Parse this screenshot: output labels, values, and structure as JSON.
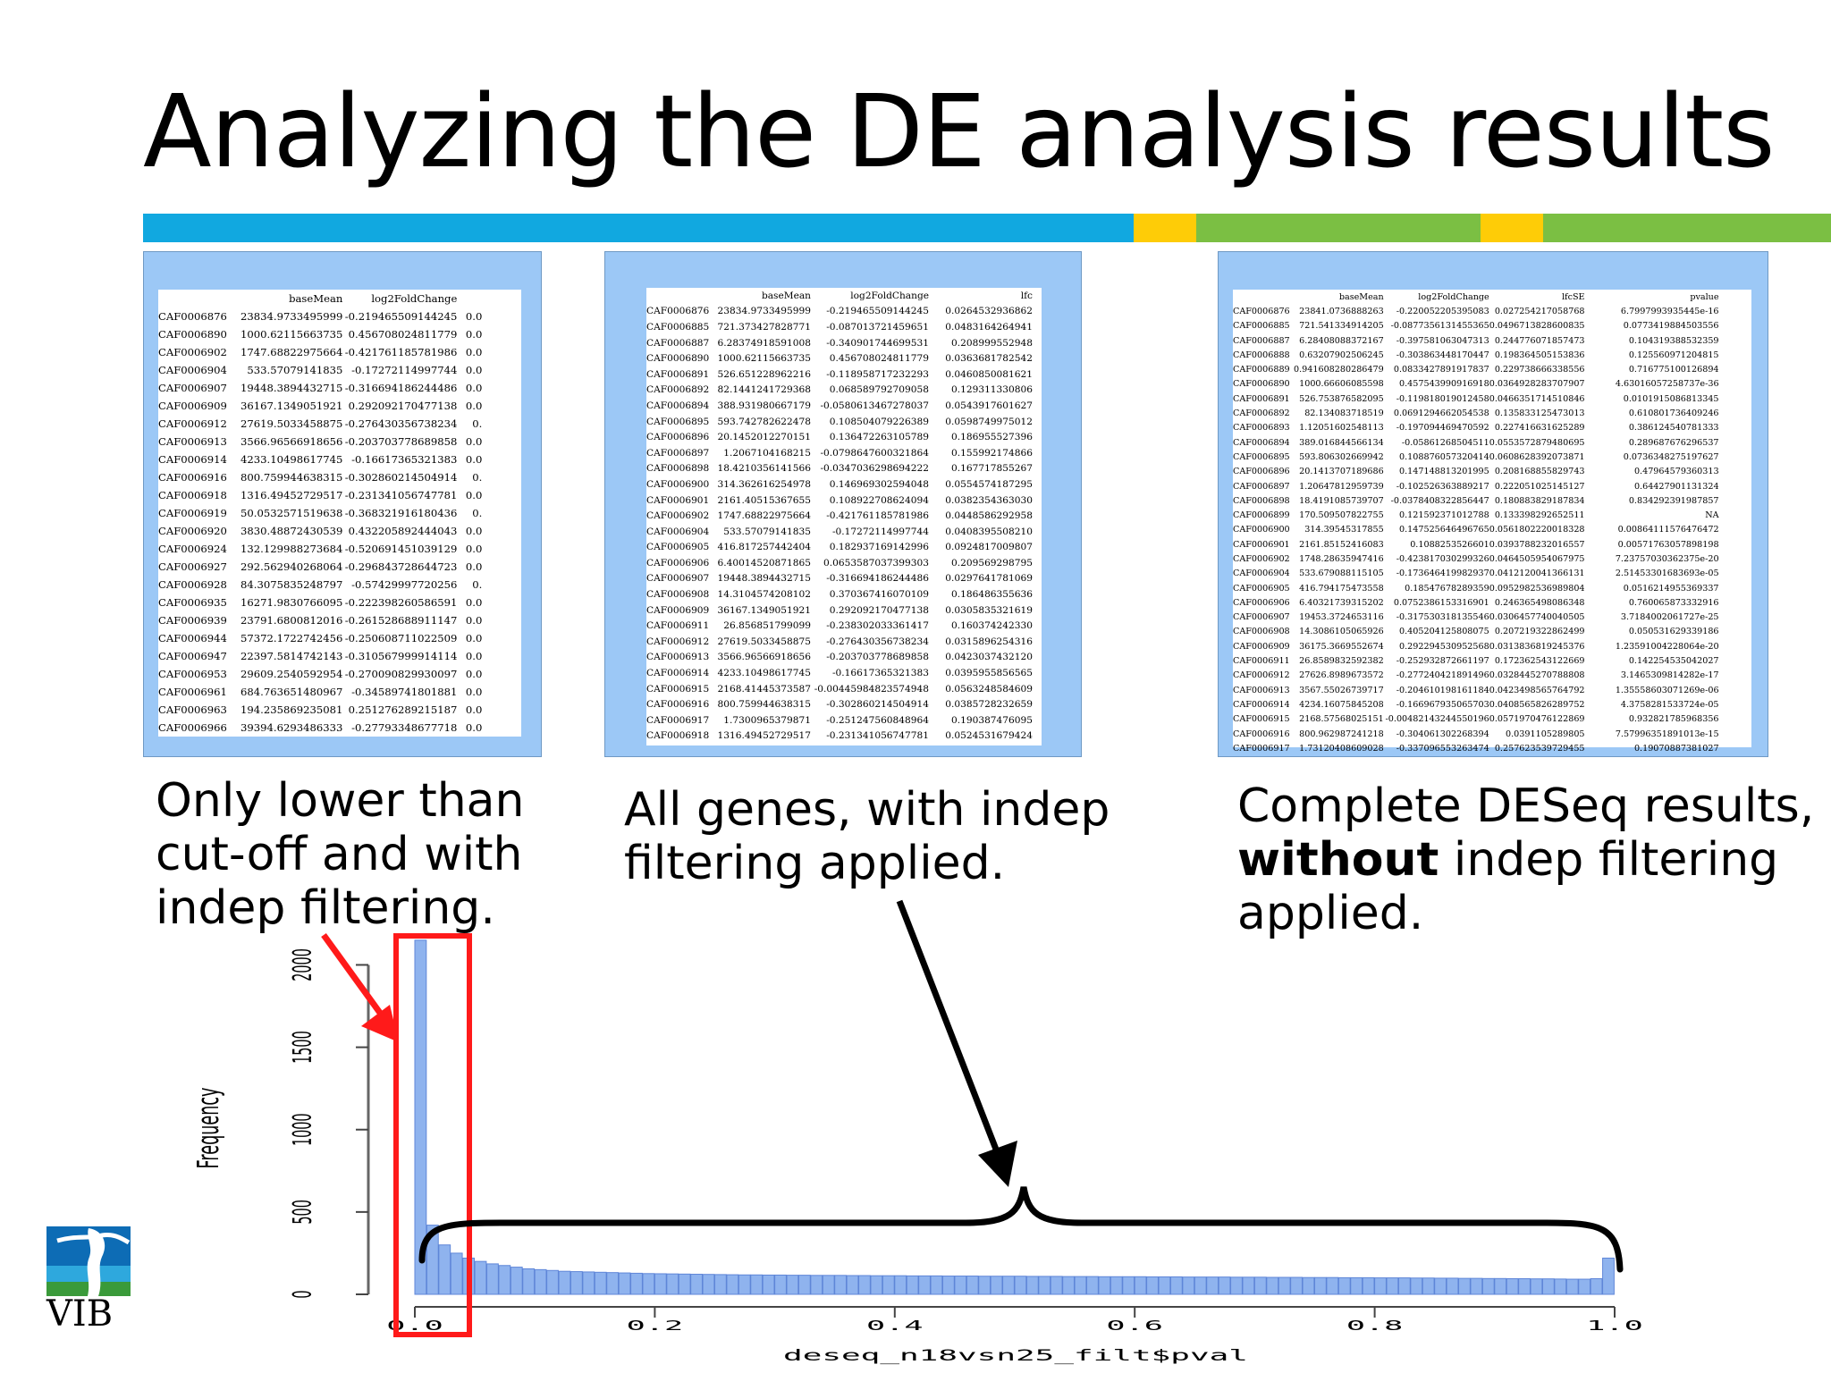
{
  "slide": {
    "title": "Analyzing the DE analysis results"
  },
  "tables": {
    "left": {
      "columns": [
        "",
        "baseMean",
        "log2FoldChange",
        ""
      ],
      "rows": [
        [
          "CAF0006876",
          "23834.9733495999",
          "-0.219465509144245",
          "0.0"
        ],
        [
          "CAF0006890",
          "1000.62115663735",
          "0.456708024811779",
          "0.0"
        ],
        [
          "CAF0006902",
          "1747.68822975664",
          "-0.421761185781986",
          "0.0"
        ],
        [
          "CAF0006904",
          "533.57079141835",
          "-0.17272114997744",
          "0.0"
        ],
        [
          "CAF0006907",
          "19448.3894432715",
          "-0.316694186244486",
          "0.0"
        ],
        [
          "CAF0006909",
          "36167.1349051921",
          "0.292092170477138",
          "0.0"
        ],
        [
          "CAF0006912",
          "27619.5033458875",
          "-0.276430356738234",
          "0."
        ],
        [
          "CAF0006913",
          "3566.96566918656",
          "-0.203703778689858",
          "0.0"
        ],
        [
          "CAF0006914",
          "4233.10498617745",
          "-0.16617365321383",
          "0.0"
        ],
        [
          "CAF0006916",
          "800.759944638315",
          "-0.302860214504914",
          "0."
        ],
        [
          "CAF0006918",
          "1316.49452729517",
          "-0.231341056747781",
          "0.0"
        ],
        [
          "CAF0006919",
          "50.0532571519638",
          "-0.368321916180436",
          "0."
        ],
        [
          "CAF0006920",
          "3830.48872430539",
          "0.432205892444043",
          "0.0"
        ],
        [
          "CAF0006924",
          "132.129988273684",
          "-0.520691451039129",
          "0.0"
        ],
        [
          "CAF0006927",
          "292.562940268064",
          "-0.296843728644723",
          "0.0"
        ],
        [
          "CAF0006928",
          "84.3075835248797",
          "-0.57429997720256",
          "0."
        ],
        [
          "CAF0006935",
          "16271.9830766095",
          "-0.222398260586591",
          "0.0"
        ],
        [
          "CAF0006939",
          "23791.6800812016",
          "-0.261528688911147",
          "0.0"
        ],
        [
          "CAF0006944",
          "57372.1722742456",
          "-0.250608711022509",
          "0.0"
        ],
        [
          "CAF0006947",
          "22397.5814742143",
          "-0.310567999914114",
          "0.0"
        ],
        [
          "CAF0006953",
          "29609.2540592954",
          "-0.270090829930097",
          "0.0"
        ],
        [
          "CAF0006961",
          "684.763651480967",
          "-0.34589741801881",
          "0.0"
        ],
        [
          "CAF0006963",
          "194.235869235081",
          "0.251276289215187",
          "0.0"
        ],
        [
          "CAF0006966",
          "39394.6293486333",
          "-0.27793348677718",
          "0.0"
        ]
      ]
    },
    "middle": {
      "columns": [
        "",
        "baseMean",
        "log2FoldChange",
        "lfc"
      ],
      "rows": [
        [
          "CAF0006876",
          "23834.9733495999",
          "-0.219465509144245",
          "0.0264532936862"
        ],
        [
          "CAF0006885",
          "721.373427828771",
          "-0.087013721459651",
          "0.0483164264941"
        ],
        [
          "CAF0006887",
          "6.28374918591008",
          "-0.340901744699531",
          "0.208999552948"
        ],
        [
          "CAF0006890",
          "1000.62115663735",
          "0.456708024811779",
          "0.0363681782542"
        ],
        [
          "CAF0006891",
          "526.651228962216",
          "-0.118958717232293",
          "0.0460850081621"
        ],
        [
          "CAF0006892",
          "82.1441241729368",
          "0.068589792709058",
          "0.129311330806"
        ],
        [
          "CAF0006894",
          "388.931980667179",
          "-0.0580613467278037",
          "0.0543917601627"
        ],
        [
          "CAF0006895",
          "593.742782622478",
          "0.108504079226389",
          "0.0598749975012"
        ],
        [
          "CAF0006896",
          "20.1452012270151",
          "0.136472263105789",
          "0.186955527396"
        ],
        [
          "CAF0006897",
          "1.2067104168215",
          "-0.0798647600321864",
          "0.155992174866"
        ],
        [
          "CAF0006898",
          "18.4210356141566",
          "-0.0347036298694222",
          "0.167717855267"
        ],
        [
          "CAF0006900",
          "314.362616254978",
          "0.146969302594048",
          "0.0554574187295"
        ],
        [
          "CAF0006901",
          "2161.40515367655",
          "0.108922708624094",
          "0.0382354363030"
        ],
        [
          "CAF0006902",
          "1747.68822975664",
          "-0.421761185781986",
          "0.0448586292958"
        ],
        [
          "CAF0006904",
          "533.57079141835",
          "-0.17272114997744",
          "0.0408395508210"
        ],
        [
          "CAF0006905",
          "416.817257442404",
          "0.182937169142996",
          "0.0924817009807"
        ],
        [
          "CAF0006906",
          "6.40014520871865",
          "0.0653587037399303",
          "0.209569298795"
        ],
        [
          "CAF0006907",
          "19448.3894432715",
          "-0.316694186244486",
          "0.0297641781069"
        ],
        [
          "CAF0006908",
          "14.3104574208102",
          "0.370367416070109",
          "0.186486355636"
        ],
        [
          "CAF0006909",
          "36167.1349051921",
          "0.292092170477138",
          "0.0305835321619"
        ],
        [
          "CAF0006911",
          "26.856851799099",
          "-0.238302033361417",
          "0.160374242330"
        ],
        [
          "CAF0006912",
          "27619.5033458875",
          "-0.276430356738234",
          "0.0315896254316"
        ],
        [
          "CAF0006913",
          "3566.96566918656",
          "-0.203703778689858",
          "0.0423037432120"
        ],
        [
          "CAF0006914",
          "4233.10498617745",
          "-0.16617365321383",
          "0.0395955856565"
        ],
        [
          "CAF0006915",
          "2168.41445373587",
          "-0.00445984823574948",
          "0.0563248584609"
        ],
        [
          "CAF0006916",
          "800.759944638315",
          "-0.302860214504914",
          "0.0385728232659"
        ],
        [
          "CAF0006917",
          "1.7300965379871",
          "-0.251247560848964",
          "0.190387476095"
        ],
        [
          "CAF0006918",
          "1316.49452729517",
          "-0.231341056747781",
          "0.0524531679424"
        ]
      ]
    },
    "right": {
      "columns": [
        "",
        "baseMean",
        "log2FoldChange",
        "lfcSE",
        "pvalue"
      ],
      "rows": [
        [
          "CAF0006876",
          "23841.0736888263",
          "-0.220052205395083",
          "0.027254217058768",
          "6.7997993935445e-16"
        ],
        [
          "CAF0006885",
          "721.541334914205",
          "-0.0877356131455365",
          "0.0496713828600835",
          "0.0773419884503556"
        ],
        [
          "CAF0006887",
          "6.28408088372167",
          "-0.397581063047313",
          "0.244776071857473",
          "0.104319388532359"
        ],
        [
          "CAF0006888",
          "0.63207902506245",
          "-0.303863448170447",
          "0.198364505153836",
          "0.125560971204815"
        ],
        [
          "CAF0006889",
          "0.941608280286479",
          "0.0833427891917837",
          "0.229738666338556",
          "0.716775100126894"
        ],
        [
          "CAF0006890",
          "1000.66606085598",
          "0.457543990916918",
          "0.0364928283707907",
          "4.63016057258737e-36"
        ],
        [
          "CAF0006891",
          "526.753876582095",
          "-0.119818019012458",
          "0.0466351714510846",
          "0.0101915086813345"
        ],
        [
          "CAF0006892",
          "82.134083718519",
          "0.0691294662054538",
          "0.135833125473013",
          "0.610801736409246"
        ],
        [
          "CAF0006893",
          "1.12051602548113",
          "-0.197094469470592",
          "0.227416631625289",
          "0.386124540781333"
        ],
        [
          "CAF0006894",
          "389.016844566134",
          "-0.05861268504511",
          "0.0553572879480695",
          "0.289687676296537"
        ],
        [
          "CAF0006895",
          "593.806302669942",
          "0.108876057320414",
          "0.0608628392073871",
          "0.0736348275197627"
        ],
        [
          "CAF0006896",
          "20.1413707189686",
          "0.147148813201995",
          "0.208168855829743",
          "0.47964579360313"
        ],
        [
          "CAF0006897",
          "1.20647812959739",
          "-0.102526363889217",
          "0.222051025145127",
          "0.64427901131324"
        ],
        [
          "CAF0006898",
          "18.4191085739707",
          "-0.0378408322856447",
          "0.180883829187834",
          "0.834292391987857"
        ],
        [
          "CAF0006899",
          "170.509507822755",
          "0.121592371012788",
          "0.133398292652511",
          "NA"
        ],
        [
          "CAF0006900",
          "314.39545317855",
          "0.147525646496765",
          "0.0561802220018328",
          "0.00864111576476472"
        ],
        [
          "CAF0006901",
          "2161.85152416083",
          "0.1088253526601",
          "0.0393788232016557",
          "0.00571763057898198"
        ],
        [
          "CAF0006902",
          "1748.28635947416",
          "-0.423817030299326",
          "0.0464505954067975",
          "7.23757030362375e-20"
        ],
        [
          "CAF0006904",
          "533.679088115105",
          "-0.173646419982937",
          "0.0412120041366131",
          "2.51453301683693e-05"
        ],
        [
          "CAF0006905",
          "416.794175473558",
          "0.18547678289359",
          "0.0952982536989804",
          "0.0516214955369337"
        ],
        [
          "CAF0006906",
          "6.40321739315202",
          "0.0752386153316901",
          "0.246365498086348",
          "0.760065873332916"
        ],
        [
          "CAF0006907",
          "19453.3724653116",
          "-0.317530318135546",
          "0.0306457740040505",
          "3.7184002061727e-25"
        ],
        [
          "CAF0006908",
          "14.3086105065926",
          "0.405204125808075",
          "0.207219322862499",
          "0.050531629339186"
        ],
        [
          "CAF0006909",
          "36175.3669552674",
          "0.292294530952568",
          "0.0313836819245376",
          "1.23591004228064e-20"
        ],
        [
          "CAF0006911",
          "26.8589832592382",
          "-0.252932872661197",
          "0.172362543122669",
          "0.142254535042027"
        ],
        [
          "CAF0006912",
          "27626.8989673572",
          "-0.277240421891496",
          "0.0328445270788808",
          "3.1465309814282e-17"
        ],
        [
          "CAF0006913",
          "3567.55026739717",
          "-0.204610198161184",
          "0.0423498565764792",
          "1.35558603071269e-06"
        ],
        [
          "CAF0006914",
          "4234.16075845208",
          "-0.166967935065703",
          "0.0408565826289752",
          "4.3758281533724e-05"
        ],
        [
          "CAF0006915",
          "2168.57568025151",
          "-0.00482143244550196",
          "0.0571970476122869",
          "0.932821785968356"
        ],
        [
          "CAF0006916",
          "800.962987241218",
          "-0.304061302268394",
          "0.0391105289805",
          "7.57996351891013e-15"
        ],
        [
          "CAF0006917",
          "1.73120408609028",
          "-0.337096553263474",
          "0.257623539729455",
          "0.19070887381027"
        ]
      ]
    }
  },
  "captions": {
    "left": [
      "Only lower than",
      "cut-off and with",
      "indep filtering."
    ],
    "middle": [
      "All genes, with indep",
      "filtering applied."
    ],
    "right_line1": "Complete DESeq results,",
    "right_bold": "without",
    "right_line2_rest": " indep filtering",
    "right_line3": "applied."
  },
  "logo": {
    "text": "VIB"
  },
  "colors": {
    "band_blue": "#11a8e0",
    "band_yellow": "#fecc07",
    "band_green": "#7bbf43",
    "panel_bg": "#9cc8f6",
    "bar_fill": "#8fb3ee",
    "highlight_red": "#ff1a1a"
  },
  "chart_data": {
    "type": "bar",
    "title": "",
    "xlabel": "deseq_n18vsn25_filt$pval",
    "ylabel": "Frequency",
    "xlim": [
      0,
      1
    ],
    "ylim": [
      0,
      2000
    ],
    "xticks": [
      "0.0",
      "0.2",
      "0.4",
      "0.6",
      "0.8",
      "1.0"
    ],
    "yticks": [
      "0",
      "500",
      "1000",
      "1500",
      "2000"
    ],
    "bin_width": 0.01,
    "values": [
      2150,
      420,
      300,
      250,
      220,
      200,
      185,
      175,
      165,
      155,
      150,
      145,
      140,
      138,
      136,
      134,
      132,
      130,
      128,
      126,
      125,
      124,
      123,
      122,
      121,
      120,
      119,
      118,
      118,
      117,
      117,
      116,
      116,
      115,
      115,
      115,
      114,
      114,
      113,
      113,
      113,
      112,
      112,
      112,
      111,
      111,
      111,
      110,
      110,
      110,
      110,
      109,
      109,
      109,
      108,
      108,
      108,
      107,
      107,
      107,
      107,
      106,
      106,
      106,
      105,
      105,
      105,
      105,
      104,
      104,
      104,
      103,
      103,
      103,
      102,
      102,
      102,
      101,
      101,
      101,
      100,
      100,
      100,
      99,
      99,
      98,
      98,
      97,
      97,
      96,
      96,
      95,
      95,
      94,
      94,
      93,
      92,
      92,
      95,
      220
    ]
  }
}
